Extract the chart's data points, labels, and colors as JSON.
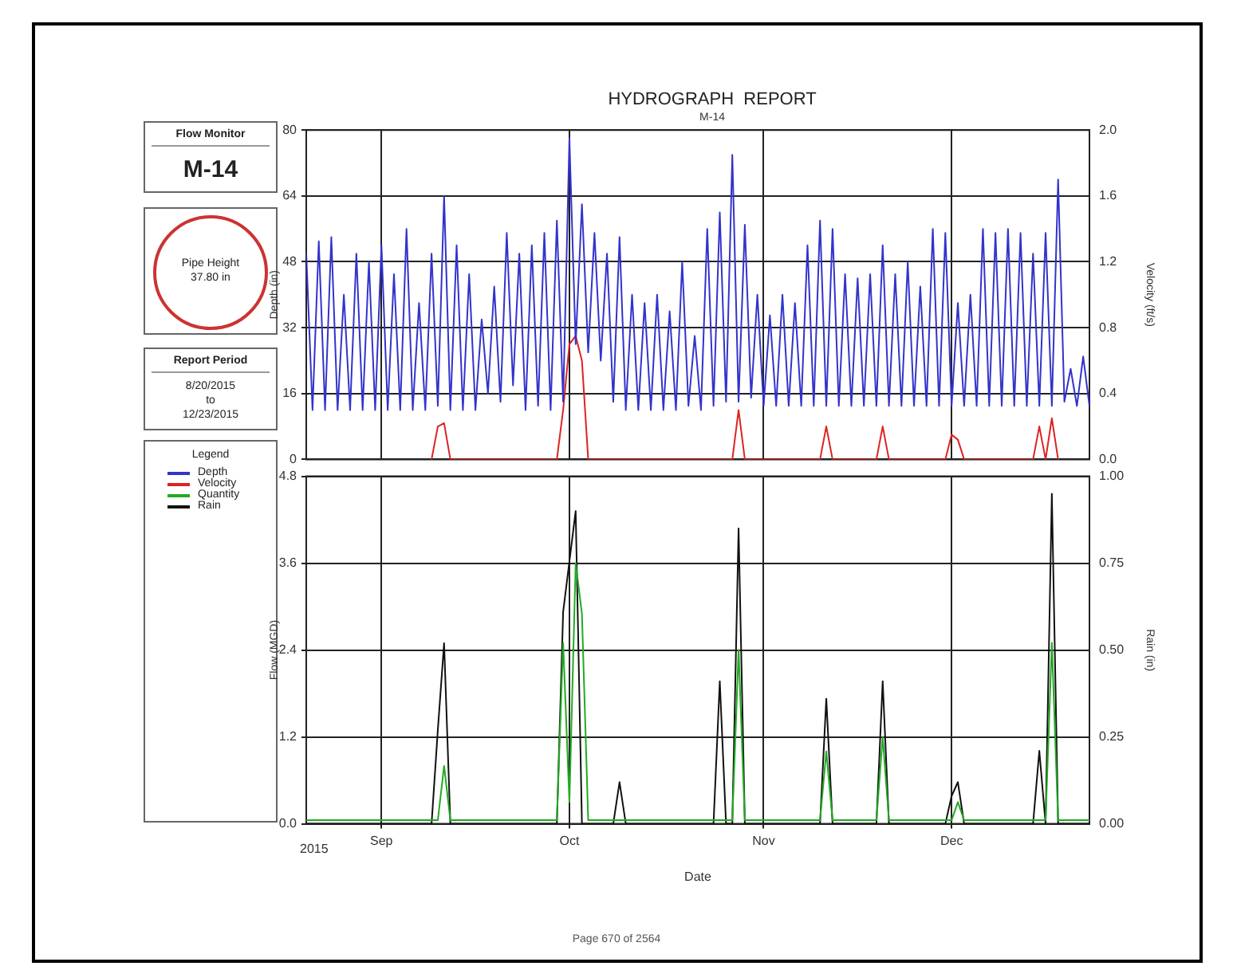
{
  "chart_data": [
    {
      "type": "other",
      "title": "Flow Monitor",
      "annotations": [
        "M-14"
      ]
    },
    {
      "type": "other",
      "annotations": [
        "Pipe Height",
        "37.80 in"
      ]
    },
    {
      "type": "other",
      "title": "Report Period",
      "annotations": [
        "8/20/2015",
        "to",
        "12/23/2015"
      ]
    },
    {
      "type": "line",
      "title": "HYDROGRAPH  REPORT",
      "subtitle": "M-14",
      "ylabel": "Depth (in)",
      "y2label": "Velocity (ft/s)",
      "legend": "left",
      "legend_title": "Legend",
      "grid": true,
      "marker": "none",
      "line_style": "solid",
      "tick_labels": "y",
      "xlim": [
        "2015-08-20",
        "2015-12-23"
      ],
      "xticks": [
        {
          "value": "2015-09-01",
          "label": null
        },
        {
          "value": "2015-10-01",
          "label": null
        },
        {
          "value": "2015-11-01",
          "label": null
        },
        {
          "value": "2015-12-01",
          "label": null
        }
      ],
      "ylim": [
        0,
        80
      ],
      "yticks": [
        0,
        16,
        32,
        48,
        64,
        80
      ],
      "y2lim": [
        0,
        2
      ],
      "y2ticks": [
        {
          "value": 0,
          "label": "0.0"
        },
        {
          "value": 0.4,
          "label": "0.4"
        },
        {
          "value": 0.8,
          "label": "0.8"
        },
        {
          "value": 1.2,
          "label": "1.2"
        },
        {
          "value": 1.6,
          "label": "1.6"
        },
        {
          "value": 2,
          "label": "2.0"
        }
      ],
      "series": [
        {
          "name": "Depth",
          "color": "#3333cc",
          "x": [
            "2015-08-20",
            "2015-08-21",
            "2015-08-22",
            "2015-08-23",
            "2015-08-24",
            "2015-08-25",
            "2015-08-26",
            "2015-08-27",
            "2015-08-28",
            "2015-08-29",
            "2015-08-30",
            "2015-08-31",
            "2015-09-01",
            "2015-09-02",
            "2015-09-03",
            "2015-09-04",
            "2015-09-05",
            "2015-09-06",
            "2015-09-07",
            "2015-09-08",
            "2015-09-09",
            "2015-09-10",
            "2015-09-11",
            "2015-09-12",
            "2015-09-13",
            "2015-09-14",
            "2015-09-15",
            "2015-09-16",
            "2015-09-17",
            "2015-09-18",
            "2015-09-19",
            "2015-09-20",
            "2015-09-21",
            "2015-09-22",
            "2015-09-23",
            "2015-09-24",
            "2015-09-25",
            "2015-09-26",
            "2015-09-27",
            "2015-09-28",
            "2015-09-29",
            "2015-09-30",
            "2015-10-01",
            "2015-10-02",
            "2015-10-03",
            "2015-10-04",
            "2015-10-05",
            "2015-10-06",
            "2015-10-07",
            "2015-10-08",
            "2015-10-09",
            "2015-10-10",
            "2015-10-11",
            "2015-10-12",
            "2015-10-13",
            "2015-10-14",
            "2015-10-15",
            "2015-10-16",
            "2015-10-17",
            "2015-10-18",
            "2015-10-19",
            "2015-10-20",
            "2015-10-21",
            "2015-10-22",
            "2015-10-23",
            "2015-10-24",
            "2015-10-25",
            "2015-10-26",
            "2015-10-27",
            "2015-10-28",
            "2015-10-29",
            "2015-10-30",
            "2015-10-31",
            "2015-11-01",
            "2015-11-02",
            "2015-11-03",
            "2015-11-04",
            "2015-11-05",
            "2015-11-06",
            "2015-11-07",
            "2015-11-08",
            "2015-11-09",
            "2015-11-10",
            "2015-11-11",
            "2015-11-12",
            "2015-11-13",
            "2015-11-14",
            "2015-11-15",
            "2015-11-16",
            "2015-11-17",
            "2015-11-18",
            "2015-11-19",
            "2015-11-20",
            "2015-11-21",
            "2015-11-22",
            "2015-11-23",
            "2015-11-24",
            "2015-11-25",
            "2015-11-26",
            "2015-11-27",
            "2015-11-28",
            "2015-11-29",
            "2015-11-30",
            "2015-12-01",
            "2015-12-02",
            "2015-12-03",
            "2015-12-04",
            "2015-12-05",
            "2015-12-06",
            "2015-12-07",
            "2015-12-08",
            "2015-12-09",
            "2015-12-10",
            "2015-12-11",
            "2015-12-12",
            "2015-12-13",
            "2015-12-14",
            "2015-12-15",
            "2015-12-16",
            "2015-12-17",
            "2015-12-18",
            "2015-12-19",
            "2015-12-20",
            "2015-12-21",
            "2015-12-22",
            "2015-12-23"
          ],
          "values": [
            50,
            12,
            53,
            12,
            54,
            12,
            40,
            12,
            50,
            12,
            48,
            12,
            52,
            12,
            45,
            12,
            56,
            12,
            38,
            12,
            50,
            13,
            64,
            12,
            52,
            12,
            45,
            12,
            34,
            16,
            42,
            14,
            55,
            18,
            50,
            12,
            52,
            13,
            55,
            12,
            58,
            14,
            78,
            28,
            62,
            26,
            55,
            24,
            50,
            14,
            54,
            12,
            40,
            12,
            38,
            12,
            40,
            12,
            36,
            12,
            48,
            13,
            30,
            12,
            56,
            13,
            60,
            14,
            74,
            14,
            57,
            15,
            40,
            13,
            35,
            13,
            40,
            13,
            38,
            13,
            52,
            13,
            58,
            13,
            56,
            13,
            45,
            13,
            44,
            13,
            45,
            13,
            52,
            13,
            45,
            13,
            48,
            13,
            42,
            13,
            56,
            13,
            55,
            13,
            38,
            13,
            40,
            13,
            56,
            13,
            55,
            13,
            56,
            13,
            55,
            13,
            50,
            13,
            55,
            13,
            68,
            14,
            22,
            13,
            25,
            13
          ]
        },
        {
          "name": "Velocity",
          "color": "#dd2222",
          "axis": "y2",
          "x": [
            "2015-09-09",
            "2015-09-10",
            "2015-09-11",
            "2015-09-12",
            "2015-09-29",
            "2015-09-30",
            "2015-10-01",
            "2015-10-02",
            "2015-10-03",
            "2015-10-04",
            "2015-10-27",
            "2015-10-28",
            "2015-10-29",
            "2015-11-10",
            "2015-11-11",
            "2015-11-12",
            "2015-11-19",
            "2015-11-20",
            "2015-11-21",
            "2015-11-30",
            "2015-12-01",
            "2015-12-02",
            "2015-12-03",
            "2015-12-14",
            "2015-12-15",
            "2015-12-16",
            "2015-12-17",
            "2015-12-18"
          ],
          "values": [
            0,
            0.2,
            0.22,
            0,
            0,
            0.3,
            0.7,
            0.75,
            0.6,
            0,
            0,
            0.3,
            0,
            0,
            0.2,
            0,
            0,
            0.2,
            0,
            0,
            0.15,
            0.12,
            0,
            0,
            0.2,
            0,
            0.25,
            0
          ]
        }
      ]
    },
    {
      "type": "line",
      "xlabel": "Date",
      "ylabel": "Flow (MGD)",
      "y2label": "Rain (in)",
      "legend": "left",
      "grid": true,
      "marker": "none",
      "line_style": "solid",
      "annotations": [
        "2015",
        "Page 670 of 2564"
      ],
      "xlim": [
        "2015-08-20",
        "2015-12-23"
      ],
      "xticks": [
        {
          "value": "2015-09-01",
          "label": "Sep"
        },
        {
          "value": "2015-10-01",
          "label": "Oct"
        },
        {
          "value": "2015-11-01",
          "label": "Nov"
        },
        {
          "value": "2015-12-01",
          "label": "Dec"
        }
      ],
      "ylim": [
        0,
        4.8
      ],
      "yticks": [
        {
          "value": 0,
          "label": "0.0"
        },
        1.2,
        2.4,
        3.6,
        4.8
      ],
      "y2lim": [
        0,
        1
      ],
      "y2ticks": [
        {
          "value": 0,
          "label": "0.00"
        },
        {
          "value": 0.25,
          "label": "0.25"
        },
        {
          "value": 0.5,
          "label": "0.50"
        },
        {
          "value": 0.75,
          "label": "0.75"
        },
        {
          "value": 1,
          "label": "1.00"
        }
      ],
      "series": [
        {
          "name": "Quantity",
          "color": "#22aa22",
          "x": [
            "2015-08-20",
            "2015-09-10",
            "2015-09-11",
            "2015-09-12",
            "2015-09-29",
            "2015-09-30",
            "2015-10-01",
            "2015-10-02",
            "2015-10-03",
            "2015-10-04",
            "2015-10-27",
            "2015-10-28",
            "2015-10-29",
            "2015-11-10",
            "2015-11-11",
            "2015-11-12",
            "2015-11-19",
            "2015-11-20",
            "2015-11-21",
            "2015-12-01",
            "2015-12-02",
            "2015-12-03",
            "2015-12-16",
            "2015-12-17",
            "2015-12-18",
            "2015-12-23"
          ],
          "values": [
            0.05,
            0.05,
            0.8,
            0.05,
            0.05,
            2.5,
            0.3,
            3.6,
            2.9,
            0.05,
            0.05,
            2.4,
            0.05,
            0.05,
            1.0,
            0.05,
            0.05,
            1.2,
            0.05,
            0.05,
            0.3,
            0.05,
            0.05,
            2.5,
            0.05,
            0.05
          ]
        },
        {
          "name": "Rain",
          "color": "#111111",
          "axis": "y2",
          "x": [
            "2015-08-20",
            "2015-09-09",
            "2015-09-10",
            "2015-09-11",
            "2015-09-12",
            "2015-09-29",
            "2015-09-30",
            "2015-10-02",
            "2015-10-03",
            "2015-10-08",
            "2015-10-09",
            "2015-10-10",
            "2015-10-24",
            "2015-10-25",
            "2015-10-26",
            "2015-10-27",
            "2015-10-28",
            "2015-10-29",
            "2015-11-10",
            "2015-11-11",
            "2015-11-12",
            "2015-11-19",
            "2015-11-20",
            "2015-11-21",
            "2015-11-30",
            "2015-12-01",
            "2015-12-02",
            "2015-12-03",
            "2015-12-14",
            "2015-12-15",
            "2015-12-16",
            "2015-12-17",
            "2015-12-18",
            "2015-12-23"
          ],
          "values": [
            0,
            0,
            0.27,
            0.52,
            0,
            0,
            0.61,
            0.9,
            0,
            0,
            0.12,
            0,
            0,
            0.41,
            0,
            0,
            0.85,
            0,
            0,
            0.36,
            0,
            0,
            0.41,
            0,
            0,
            0.08,
            0.12,
            0,
            0,
            0.21,
            0,
            0.95,
            0,
            0
          ]
        }
      ]
    }
  ]
}
